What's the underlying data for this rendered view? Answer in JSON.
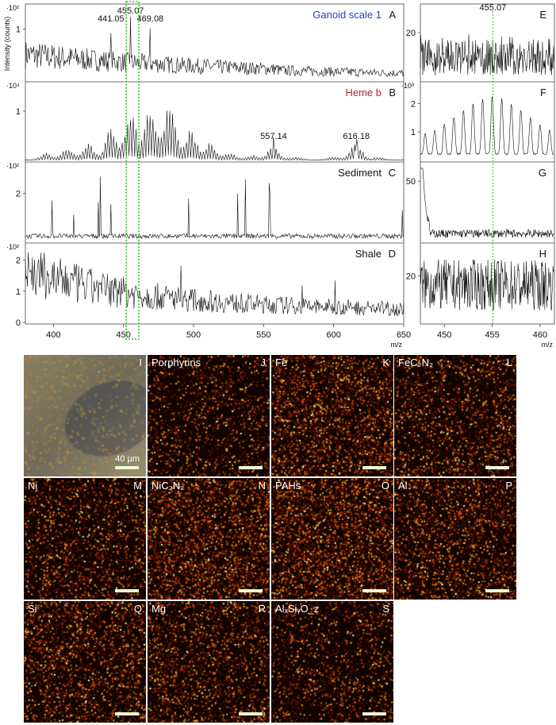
{
  "colors": {
    "ganoid_label": "#1f3fc4",
    "heme_label": "#c0272d",
    "highlight_box": "#2bbf2b",
    "trace": "#111111"
  },
  "chart_data": [
    {
      "type": "line",
      "ylabel": "Intensity (counts)",
      "xlabel": "m/z",
      "xlim": [
        380,
        650
      ],
      "x_ticks": [
        "400",
        "450",
        "500",
        "550",
        "600",
        "650"
      ],
      "highlight_mz_range": [
        452,
        461
      ],
      "panels": [
        {
          "letter": "A",
          "name": "Ganoid scale 1",
          "multiplier": "·10²",
          "y_ticks": [
            "1"
          ],
          "ylim": [
            0,
            1.4
          ],
          "peak_labels": [
            {
              "mz": 441.05,
              "text": "441.05"
            },
            {
              "mz": 455.07,
              "text": "455.07"
            },
            {
              "mz": 469.08,
              "text": "469.08"
            }
          ]
        },
        {
          "letter": "B",
          "name": "Heme b",
          "multiplier": "·10⁴",
          "y_ticks": [
            "1"
          ],
          "ylim": [
            0,
            1.5
          ],
          "peak_labels": [
            {
              "mz": 557.14,
              "text": "557.14"
            },
            {
              "mz": 616.18,
              "text": "616.18"
            }
          ]
        },
        {
          "letter": "C",
          "name": "Sediment",
          "multiplier": "·10²",
          "y_ticks": [
            "2"
          ],
          "ylim": [
            0,
            3.1
          ],
          "peak_labels": []
        },
        {
          "letter": "D",
          "name": "Shale",
          "multiplier": "·10²",
          "y_ticks": [
            "2",
            "1",
            "0"
          ],
          "ylim": [
            0,
            2.4
          ],
          "peak_labels": []
        }
      ]
    },
    {
      "type": "line",
      "xlabel": "m/z",
      "xlim": [
        447.5,
        461.5
      ],
      "x_ticks": [
        "450",
        "455",
        "460"
      ],
      "marker_mz": 455.07,
      "panels": [
        {
          "letter": "E",
          "multiplier": "",
          "y_ticks": [
            "20"
          ],
          "ylim": [
            0,
            30
          ],
          "peak_labels": [
            {
              "mz": 455.07,
              "text": "455.07"
            }
          ]
        },
        {
          "letter": "F",
          "multiplier": "·10³",
          "y_ticks": [
            "2",
            "1"
          ],
          "ylim": [
            0,
            2.6
          ],
          "peak_labels": []
        },
        {
          "letter": "G",
          "multiplier": "",
          "y_ticks": [
            "50"
          ],
          "ylim": [
            0,
            62
          ],
          "peak_labels": []
        },
        {
          "letter": "H",
          "multiplier": "",
          "y_ticks": [
            "20"
          ],
          "ylim": [
            0,
            32
          ],
          "peak_labels": []
        }
      ]
    }
  ],
  "images": [
    {
      "letter": "I",
      "label": "",
      "type": "optical",
      "scalebar": "40 µm"
    },
    {
      "letter": "J",
      "label": "Porphyrins",
      "density": 0.45
    },
    {
      "letter": "K",
      "label": "Fe",
      "density": 0.8
    },
    {
      "letter": "L",
      "label": "FeC₂N₂",
      "density": 0.6
    },
    {
      "letter": "M",
      "label": "Ni",
      "density": 0.55
    },
    {
      "letter": "N",
      "label": "NiC₂N₂",
      "density": 0.9
    },
    {
      "letter": "O",
      "label": "PAHs",
      "density": 0.95
    },
    {
      "letter": "P",
      "label": "Al",
      "density": 0.7
    },
    {
      "letter": "Q",
      "label": "Si",
      "density": 0.7
    },
    {
      "letter": "R",
      "label": "Mg",
      "density": 0.6
    },
    {
      "letter": "S",
      "label": "AlₓSiᵧO_z",
      "density": 0.45
    }
  ]
}
